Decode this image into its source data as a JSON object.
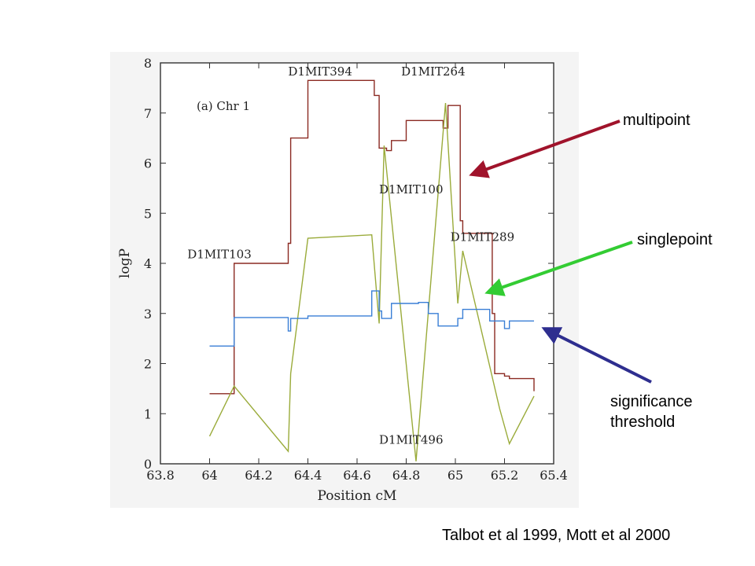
{
  "chart_data": {
    "type": "line",
    "panel_label": "(a) Chr 1",
    "xlabel": "Position cM",
    "ylabel": "logP",
    "xlim": [
      63.8,
      65.4
    ],
    "ylim": [
      0,
      8
    ],
    "xticks": [
      "63.8",
      "64",
      "64.2",
      "64.4",
      "64.6",
      "64.8",
      "65",
      "65.2",
      "65.4"
    ],
    "yticks": [
      "0",
      "1",
      "2",
      "3",
      "4",
      "5",
      "6",
      "7",
      "8"
    ],
    "series": [
      {
        "name": "multipoint",
        "color": "#8b2a22",
        "step": true,
        "x": [
          64.0,
          64.1,
          64.32,
          64.33,
          64.4,
          64.67,
          64.69,
          64.72,
          64.74,
          64.8,
          64.95,
          64.97,
          65.02,
          65.03,
          65.15,
          65.16,
          65.2,
          65.22,
          65.32
        ],
        "y": [
          1.4,
          4.0,
          4.4,
          6.5,
          7.65,
          7.35,
          6.3,
          6.25,
          6.45,
          6.85,
          6.7,
          7.15,
          4.85,
          4.6,
          3.0,
          1.8,
          1.75,
          1.7,
          1.45
        ]
      },
      {
        "name": "singlepoint",
        "color": "#9aab3a",
        "step": false,
        "x": [
          64.0,
          64.1,
          64.32,
          64.33,
          64.4,
          64.66,
          64.69,
          64.71,
          64.84,
          64.96,
          65.01,
          65.03,
          65.18,
          65.22,
          65.32
        ],
        "y": [
          0.55,
          1.55,
          0.25,
          1.8,
          4.5,
          4.57,
          2.8,
          6.35,
          0.05,
          7.2,
          3.2,
          4.25,
          1.1,
          0.4,
          1.35
        ]
      },
      {
        "name": "significance threshold",
        "color": "#3a7fd6",
        "step": true,
        "x": [
          64.0,
          64.1,
          64.32,
          64.33,
          64.4,
          64.66,
          64.69,
          64.7,
          64.74,
          64.78,
          64.85,
          64.89,
          64.93,
          65.01,
          65.03,
          65.13,
          65.14,
          65.2,
          65.22,
          65.32
        ],
        "y": [
          2.35,
          2.92,
          2.65,
          2.9,
          2.95,
          3.45,
          3.05,
          2.9,
          3.2,
          3.2,
          3.22,
          3.0,
          2.75,
          2.9,
          3.08,
          3.08,
          2.85,
          2.7,
          2.85,
          2.85
        ]
      }
    ],
    "marker_labels": [
      {
        "text": "D1MIT394",
        "x": 64.45,
        "y": 7.75
      },
      {
        "text": "D1MIT264",
        "x": 64.91,
        "y": 7.75
      },
      {
        "text": "D1MIT100",
        "x": 64.82,
        "y": 5.4
      },
      {
        "text": "D1MIT289",
        "x": 65.11,
        "y": 4.45
      },
      {
        "text": "D1MIT103",
        "x": 64.04,
        "y": 4.1
      },
      {
        "text": "D1MIT496",
        "x": 64.82,
        "y": 0.4
      }
    ]
  },
  "annotations": {
    "multipoint": {
      "label": "multipoint",
      "color": "#a0132b"
    },
    "singlepoint": {
      "label": "singlepoint",
      "color": "#33cc33"
    },
    "threshold": {
      "label": "significance threshold",
      "color": "#2e2e8f"
    }
  },
  "citation": "Talbot et al 1999, Mott et al 2000"
}
